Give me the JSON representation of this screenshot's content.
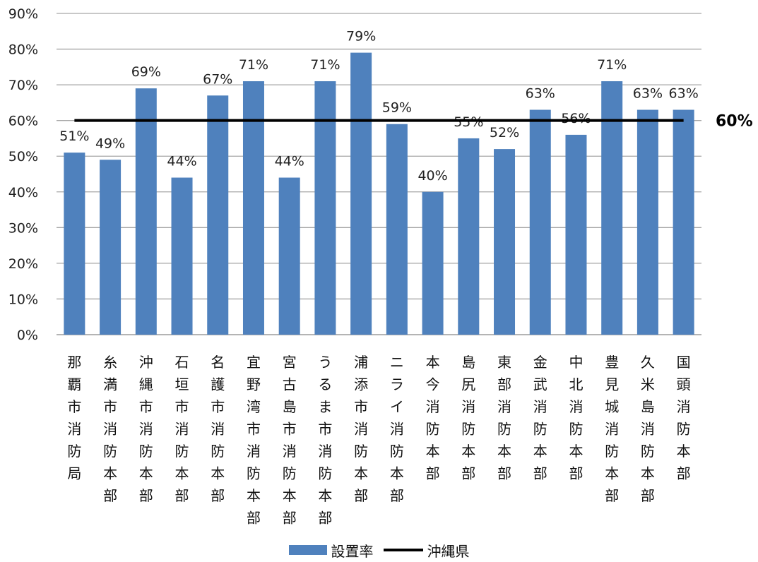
{
  "chart_data": {
    "type": "bar",
    "categories": [
      "那覇市消防局",
      "糸満市消防本部",
      "沖縄市消防本部",
      "石垣市消防本部",
      "名護市消防本部",
      "宜野湾市消防本部",
      "宮古島市消防本部",
      "うるま市消防本部",
      "浦添市消防本部",
      "ニライ消防本部",
      "本今消防本部",
      "島尻消防本部",
      "東部消防本部",
      "金武消防本部",
      "中北消防本部",
      "豊見城消防本部",
      "久米島消防本部",
      "国頭消防本部"
    ],
    "series": [
      {
        "name": "設置率",
        "values": [
          51,
          49,
          69,
          44,
          67,
          71,
          44,
          71,
          79,
          59,
          40,
          55,
          52,
          63,
          56,
          71,
          63,
          63
        ],
        "labels": [
          "51%",
          "49%",
          "69%",
          "44%",
          "67%",
          "71%",
          "44%",
          "71%",
          "79%",
          "59%",
          "40%",
          "55%",
          "52%",
          "63%",
          "56%",
          "71%",
          "63%",
          "63%"
        ],
        "color": "#4f81bd"
      },
      {
        "name": "沖縄県",
        "type": "line",
        "value": 60,
        "label": "60%",
        "color": "#000000"
      }
    ],
    "ylim": [
      0,
      90
    ],
    "yticks": [
      "0%",
      "10%",
      "20%",
      "30%",
      "40%",
      "50%",
      "60%",
      "70%",
      "80%",
      "90%"
    ],
    "grid": true,
    "legend_position": "bottom"
  }
}
